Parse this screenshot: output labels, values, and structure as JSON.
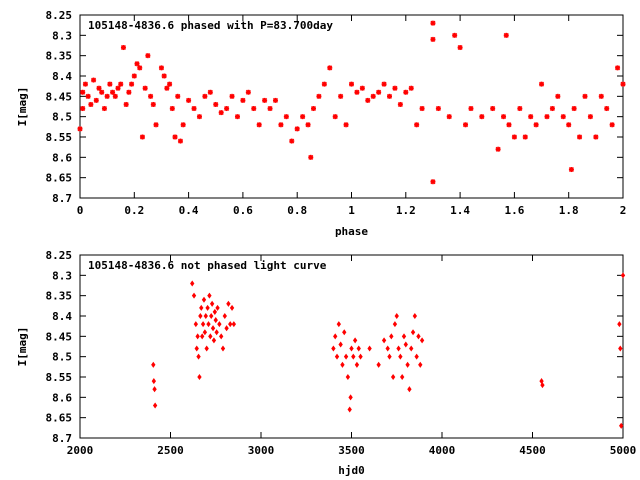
{
  "colors": {
    "points": "#ff0000",
    "axes": "#000000",
    "background": "#ffffff"
  },
  "chart_data": [
    {
      "type": "scatter",
      "title": "105148-4836.6 phased with P=83.700day",
      "xlabel": "phase",
      "ylabel": "I[mag]",
      "xlim": [
        0,
        2
      ],
      "ylim": [
        8.25,
        8.7
      ],
      "y_inverted": true,
      "xticks": [
        "0",
        "0.2",
        "0.4",
        "0.6",
        "0.8",
        "1",
        "1.2",
        "1.4",
        "1.6",
        "1.8",
        "2"
      ],
      "yticks": [
        "8.25",
        "8.3",
        "8.35",
        "8.4",
        "8.45",
        "8.5",
        "8.55",
        "8.6",
        "8.65",
        "8.7"
      ],
      "marker": "star",
      "series": [
        {
          "x": [
            0.0,
            0.01,
            0.01,
            0.02,
            0.03,
            0.04,
            0.05,
            0.06,
            0.07,
            0.08,
            0.09,
            0.1,
            0.11,
            0.12,
            0.13,
            0.14,
            0.15,
            0.16,
            0.17,
            0.18,
            0.19,
            0.2,
            0.21,
            0.22,
            0.23,
            0.24,
            0.25,
            0.26,
            0.27,
            0.28,
            0.3,
            0.31,
            0.32,
            0.33,
            0.34,
            0.35,
            0.36,
            0.37,
            0.38,
            0.4,
            0.42,
            0.44,
            0.46,
            0.48,
            0.5,
            0.52,
            0.54,
            0.56,
            0.58,
            0.6,
            0.62,
            0.64,
            0.66,
            0.68,
            0.7,
            0.72,
            0.74,
            0.76,
            0.78,
            0.8,
            0.82,
            0.84,
            0.85,
            0.86,
            0.88,
            0.9,
            0.92,
            0.94,
            0.96,
            0.98,
            1.0,
            1.02,
            1.04,
            1.06,
            1.08,
            1.1,
            1.12,
            1.14,
            1.16,
            1.18,
            1.2,
            1.22,
            1.24,
            1.26,
            1.3,
            1.3,
            1.3,
            1.32,
            1.36,
            1.38,
            1.4,
            1.42,
            1.44,
            1.48,
            1.52,
            1.54,
            1.56,
            1.57,
            1.58,
            1.6,
            1.62,
            1.64,
            1.66,
            1.68,
            1.7,
            1.72,
            1.74,
            1.76,
            1.78,
            1.8,
            1.81,
            1.82,
            1.84,
            1.86,
            1.88,
            1.9,
            1.92,
            1.94,
            1.96,
            1.98,
            2.0
          ],
          "y": [
            8.53,
            8.48,
            8.44,
            8.42,
            8.45,
            8.47,
            8.41,
            8.46,
            8.43,
            8.44,
            8.48,
            8.45,
            8.42,
            8.44,
            8.45,
            8.43,
            8.42,
            8.33,
            8.47,
            8.44,
            8.42,
            8.4,
            8.37,
            8.38,
            8.55,
            8.43,
            8.35,
            8.45,
            8.47,
            8.52,
            8.38,
            8.4,
            8.43,
            8.42,
            8.48,
            8.55,
            8.45,
            8.56,
            8.52,
            8.46,
            8.48,
            8.5,
            8.45,
            8.44,
            8.47,
            8.49,
            8.48,
            8.45,
            8.5,
            8.46,
            8.44,
            8.48,
            8.52,
            8.46,
            8.48,
            8.46,
            8.52,
            8.5,
            8.56,
            8.53,
            8.5,
            8.52,
            8.6,
            8.48,
            8.45,
            8.42,
            8.38,
            8.5,
            8.45,
            8.52,
            8.42,
            8.44,
            8.43,
            8.46,
            8.45,
            8.44,
            8.42,
            8.45,
            8.43,
            8.47,
            8.44,
            8.43,
            8.52,
            8.48,
            8.27,
            8.31,
            8.66,
            8.48,
            8.5,
            8.3,
            8.33,
            8.52,
            8.48,
            8.5,
            8.48,
            8.58,
            8.5,
            8.3,
            8.52,
            8.55,
            8.48,
            8.55,
            8.5,
            8.52,
            8.42,
            8.5,
            8.48,
            8.45,
            8.5,
            8.52,
            8.63,
            8.48,
            8.55,
            8.45,
            8.5,
            8.55,
            8.45,
            8.48,
            8.52,
            8.38,
            8.42
          ]
        }
      ]
    },
    {
      "type": "scatter",
      "title": "105148-4836.6 not phased light curve",
      "xlabel": "hjd0",
      "ylabel": "I[mag]",
      "xlim": [
        2000,
        5000
      ],
      "ylim": [
        8.25,
        8.7
      ],
      "y_inverted": true,
      "xticks": [
        "2000",
        "2500",
        "3000",
        "3500",
        "4000",
        "4500",
        "5000"
      ],
      "yticks": [
        "8.25",
        "8.3",
        "8.35",
        "8.4",
        "8.45",
        "8.5",
        "8.55",
        "8.6",
        "8.65",
        "8.7"
      ],
      "marker": "diamond",
      "series": [
        {
          "x": [
            2405,
            2408,
            2412,
            2415,
            2620,
            2630,
            2640,
            2645,
            2650,
            2655,
            2660,
            2665,
            2670,
            2675,
            2680,
            2685,
            2690,
            2695,
            2700,
            2705,
            2710,
            2715,
            2720,
            2725,
            2730,
            2735,
            2740,
            2745,
            2750,
            2755,
            2760,
            2770,
            2780,
            2790,
            2800,
            2810,
            2820,
            2830,
            2840,
            2850,
            3400,
            3410,
            3420,
            3430,
            3440,
            3450,
            3460,
            3470,
            3480,
            3490,
            3495,
            3500,
            3510,
            3520,
            3530,
            3540,
            3550,
            3600,
            3650,
            3680,
            3700,
            3710,
            3720,
            3730,
            3740,
            3750,
            3760,
            3770,
            3780,
            3790,
            3800,
            3810,
            3820,
            3830,
            3840,
            3850,
            3860,
            3870,
            3880,
            3890,
            4550,
            4555,
            4980,
            4985,
            4990,
            5000
          ],
          "y": [
            8.52,
            8.56,
            8.58,
            8.62,
            8.32,
            8.35,
            8.42,
            8.48,
            8.45,
            8.5,
            8.55,
            8.4,
            8.38,
            8.45,
            8.42,
            8.36,
            8.44,
            8.4,
            8.48,
            8.38,
            8.42,
            8.35,
            8.45,
            8.4,
            8.37,
            8.43,
            8.46,
            8.39,
            8.41,
            8.44,
            8.38,
            8.42,
            8.45,
            8.48,
            8.4,
            8.43,
            8.37,
            8.42,
            8.38,
            8.42,
            8.48,
            8.45,
            8.5,
            8.42,
            8.47,
            8.52,
            8.44,
            8.5,
            8.55,
            8.63,
            8.6,
            8.48,
            8.5,
            8.46,
            8.52,
            8.48,
            8.5,
            8.48,
            8.52,
            8.46,
            8.48,
            8.5,
            8.45,
            8.55,
            8.42,
            8.4,
            8.48,
            8.5,
            8.55,
            8.45,
            8.47,
            8.52,
            8.58,
            8.48,
            8.44,
            8.4,
            8.5,
            8.45,
            8.52,
            8.46,
            8.56,
            8.57,
            8.42,
            8.48,
            8.67,
            8.3
          ]
        }
      ]
    }
  ]
}
